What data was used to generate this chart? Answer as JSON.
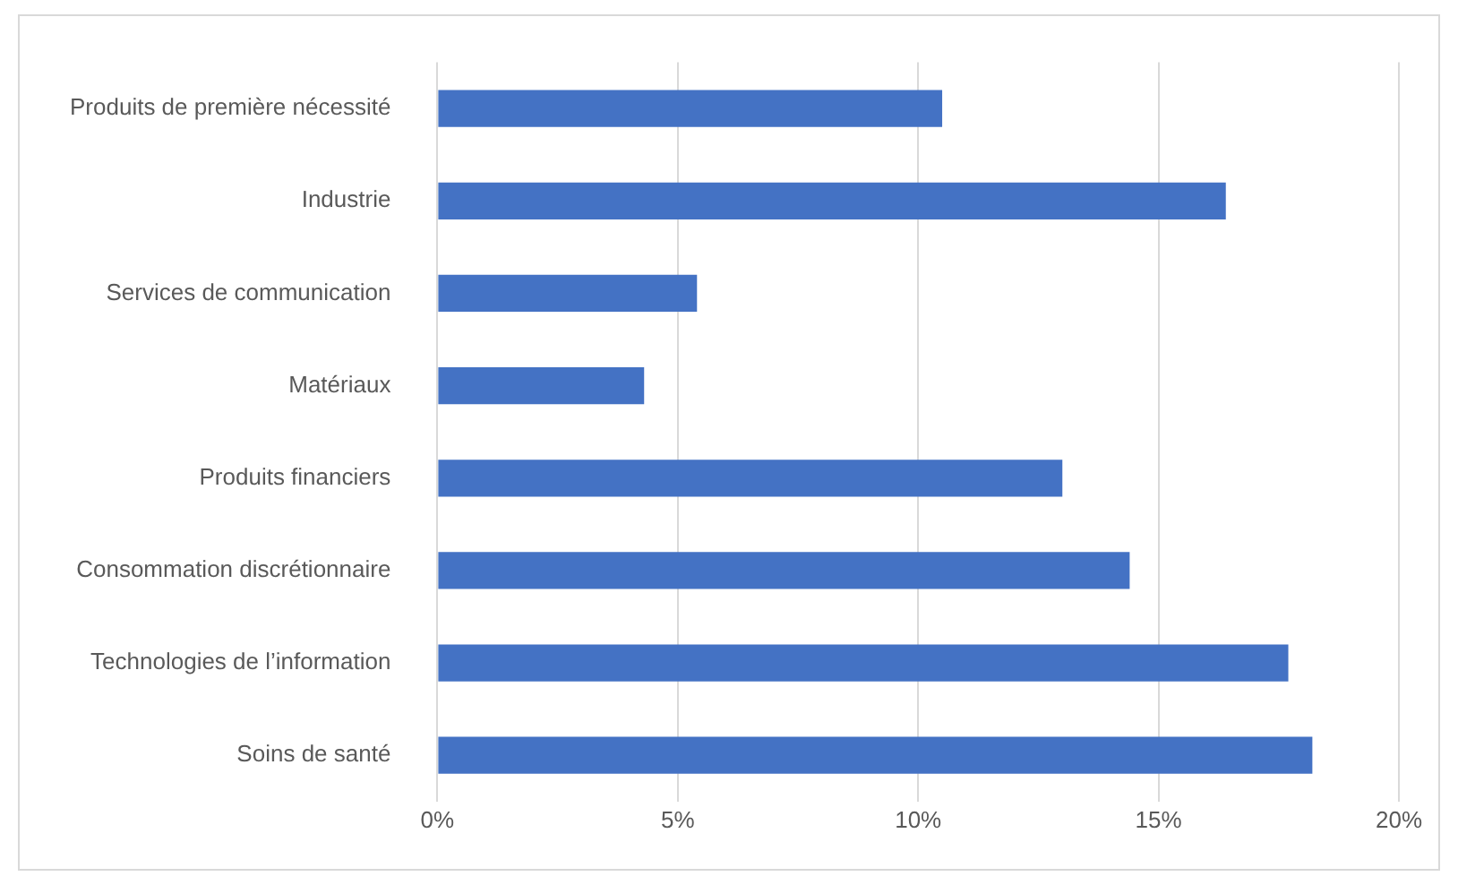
{
  "chart_data": {
    "type": "bar",
    "orientation": "horizontal",
    "categories": [
      "Produits de première nécessité",
      "Industrie",
      "Services de communication",
      "Matériaux",
      "Produits financiers",
      "Consommation discrétionnaire",
      "Technologies de l’information",
      "Soins de santé"
    ],
    "values": [
      10.5,
      16.4,
      5.4,
      4.3,
      13.0,
      14.4,
      17.7,
      18.2
    ],
    "color": "#4472c4",
    "xlim": [
      0,
      20
    ],
    "xticks": [
      {
        "value": 0,
        "label": "0%"
      },
      {
        "value": 5,
        "label": "5%"
      },
      {
        "value": 10,
        "label": "10%"
      },
      {
        "value": 15,
        "label": "15%"
      },
      {
        "value": 20,
        "label": "20%"
      }
    ],
    "grid": "x",
    "legend": false
  }
}
